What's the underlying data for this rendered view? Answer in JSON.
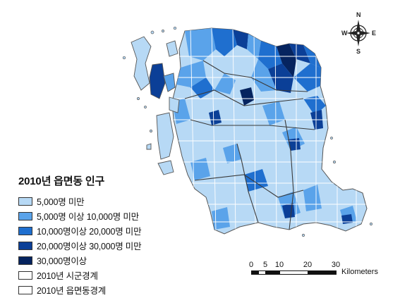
{
  "legend": {
    "title": "2010년 읍면동 인구",
    "items": [
      {
        "label": "5,000명 미만",
        "color": "#b7d9f5",
        "kind": "fill"
      },
      {
        "label": "5,000명 이상 10,000명 미만",
        "color": "#5aa3ea",
        "kind": "fill"
      },
      {
        "label": "10,000명이상 20,000명 미만",
        "color": "#1f6fcf",
        "kind": "fill"
      },
      {
        "label": "20,000명이상 30,000명 미만",
        "color": "#0b3f97",
        "kind": "fill"
      },
      {
        "label": "30,000명이상",
        "color": "#06245f",
        "kind": "fill"
      },
      {
        "label": "2010년 시군경계",
        "color": "#ffffff",
        "kind": "outline"
      },
      {
        "label": "2010년 읍면동경계",
        "color": "#ffffff",
        "kind": "outline"
      }
    ]
  },
  "compass": {
    "n": "N",
    "s": "S",
    "e": "E",
    "w": "W"
  },
  "scale": {
    "ticks": [
      "0",
      "5",
      "10",
      "20",
      "30"
    ],
    "unit": "Kilometers"
  },
  "palette": {
    "lightest": "#b7d9f5",
    "light": "#5aa3ea",
    "medium": "#1f6fcf",
    "dark": "#0b3f97",
    "darkest": "#06245f",
    "boundary": "#ffffff"
  }
}
